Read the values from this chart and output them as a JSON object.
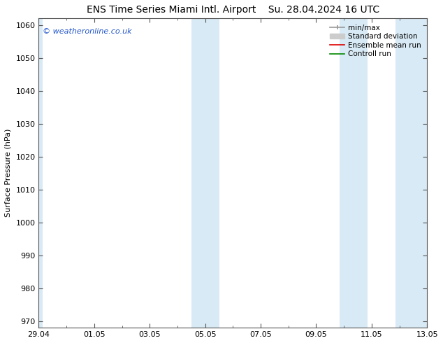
{
  "title_left": "ENS Time Series Miami Intl. Airport",
  "title_right": "Su. 28.04.2024 16 UTC",
  "ylabel": "Surface Pressure (hPa)",
  "ylim": [
    968,
    1062
  ],
  "yticks": [
    970,
    980,
    990,
    1000,
    1010,
    1020,
    1030,
    1040,
    1050,
    1060
  ],
  "x_tick_labels": [
    "29.04",
    "01.05",
    "03.05",
    "05.05",
    "07.05",
    "09.05",
    "11.05",
    "13.05"
  ],
  "x_tick_positions": [
    0,
    2,
    4,
    6,
    8,
    10,
    12,
    14
  ],
  "xlim": [
    0,
    14
  ],
  "shaded_bands": [
    {
      "x_start": -0.15,
      "x_end": 0.15
    },
    {
      "x_start": 5.5,
      "x_end": 6.5
    },
    {
      "x_start": 10.85,
      "x_end": 11.85
    },
    {
      "x_start": 12.85,
      "x_end": 14.15
    }
  ],
  "band_color": "#d8eaf5",
  "background_color": "#ffffff",
  "plot_bg_color": "#ffffff",
  "copyright_text": "© weatheronline.co.uk",
  "copyright_color": "#2255cc",
  "legend_items": [
    {
      "label": "min/max",
      "color": "#999999",
      "lw": 1.2,
      "style": "-"
    },
    {
      "label": "Standard deviation",
      "color": "#cccccc",
      "lw": 5,
      "style": "-"
    },
    {
      "label": "Ensemble mean run",
      "color": "#dd0000",
      "lw": 1.2,
      "style": "-"
    },
    {
      "label": "Controll run",
      "color": "#008800",
      "lw": 1.2,
      "style": "-"
    }
  ],
  "title_fontsize": 10,
  "ylabel_fontsize": 8,
  "tick_fontsize": 8,
  "legend_fontsize": 7.5
}
